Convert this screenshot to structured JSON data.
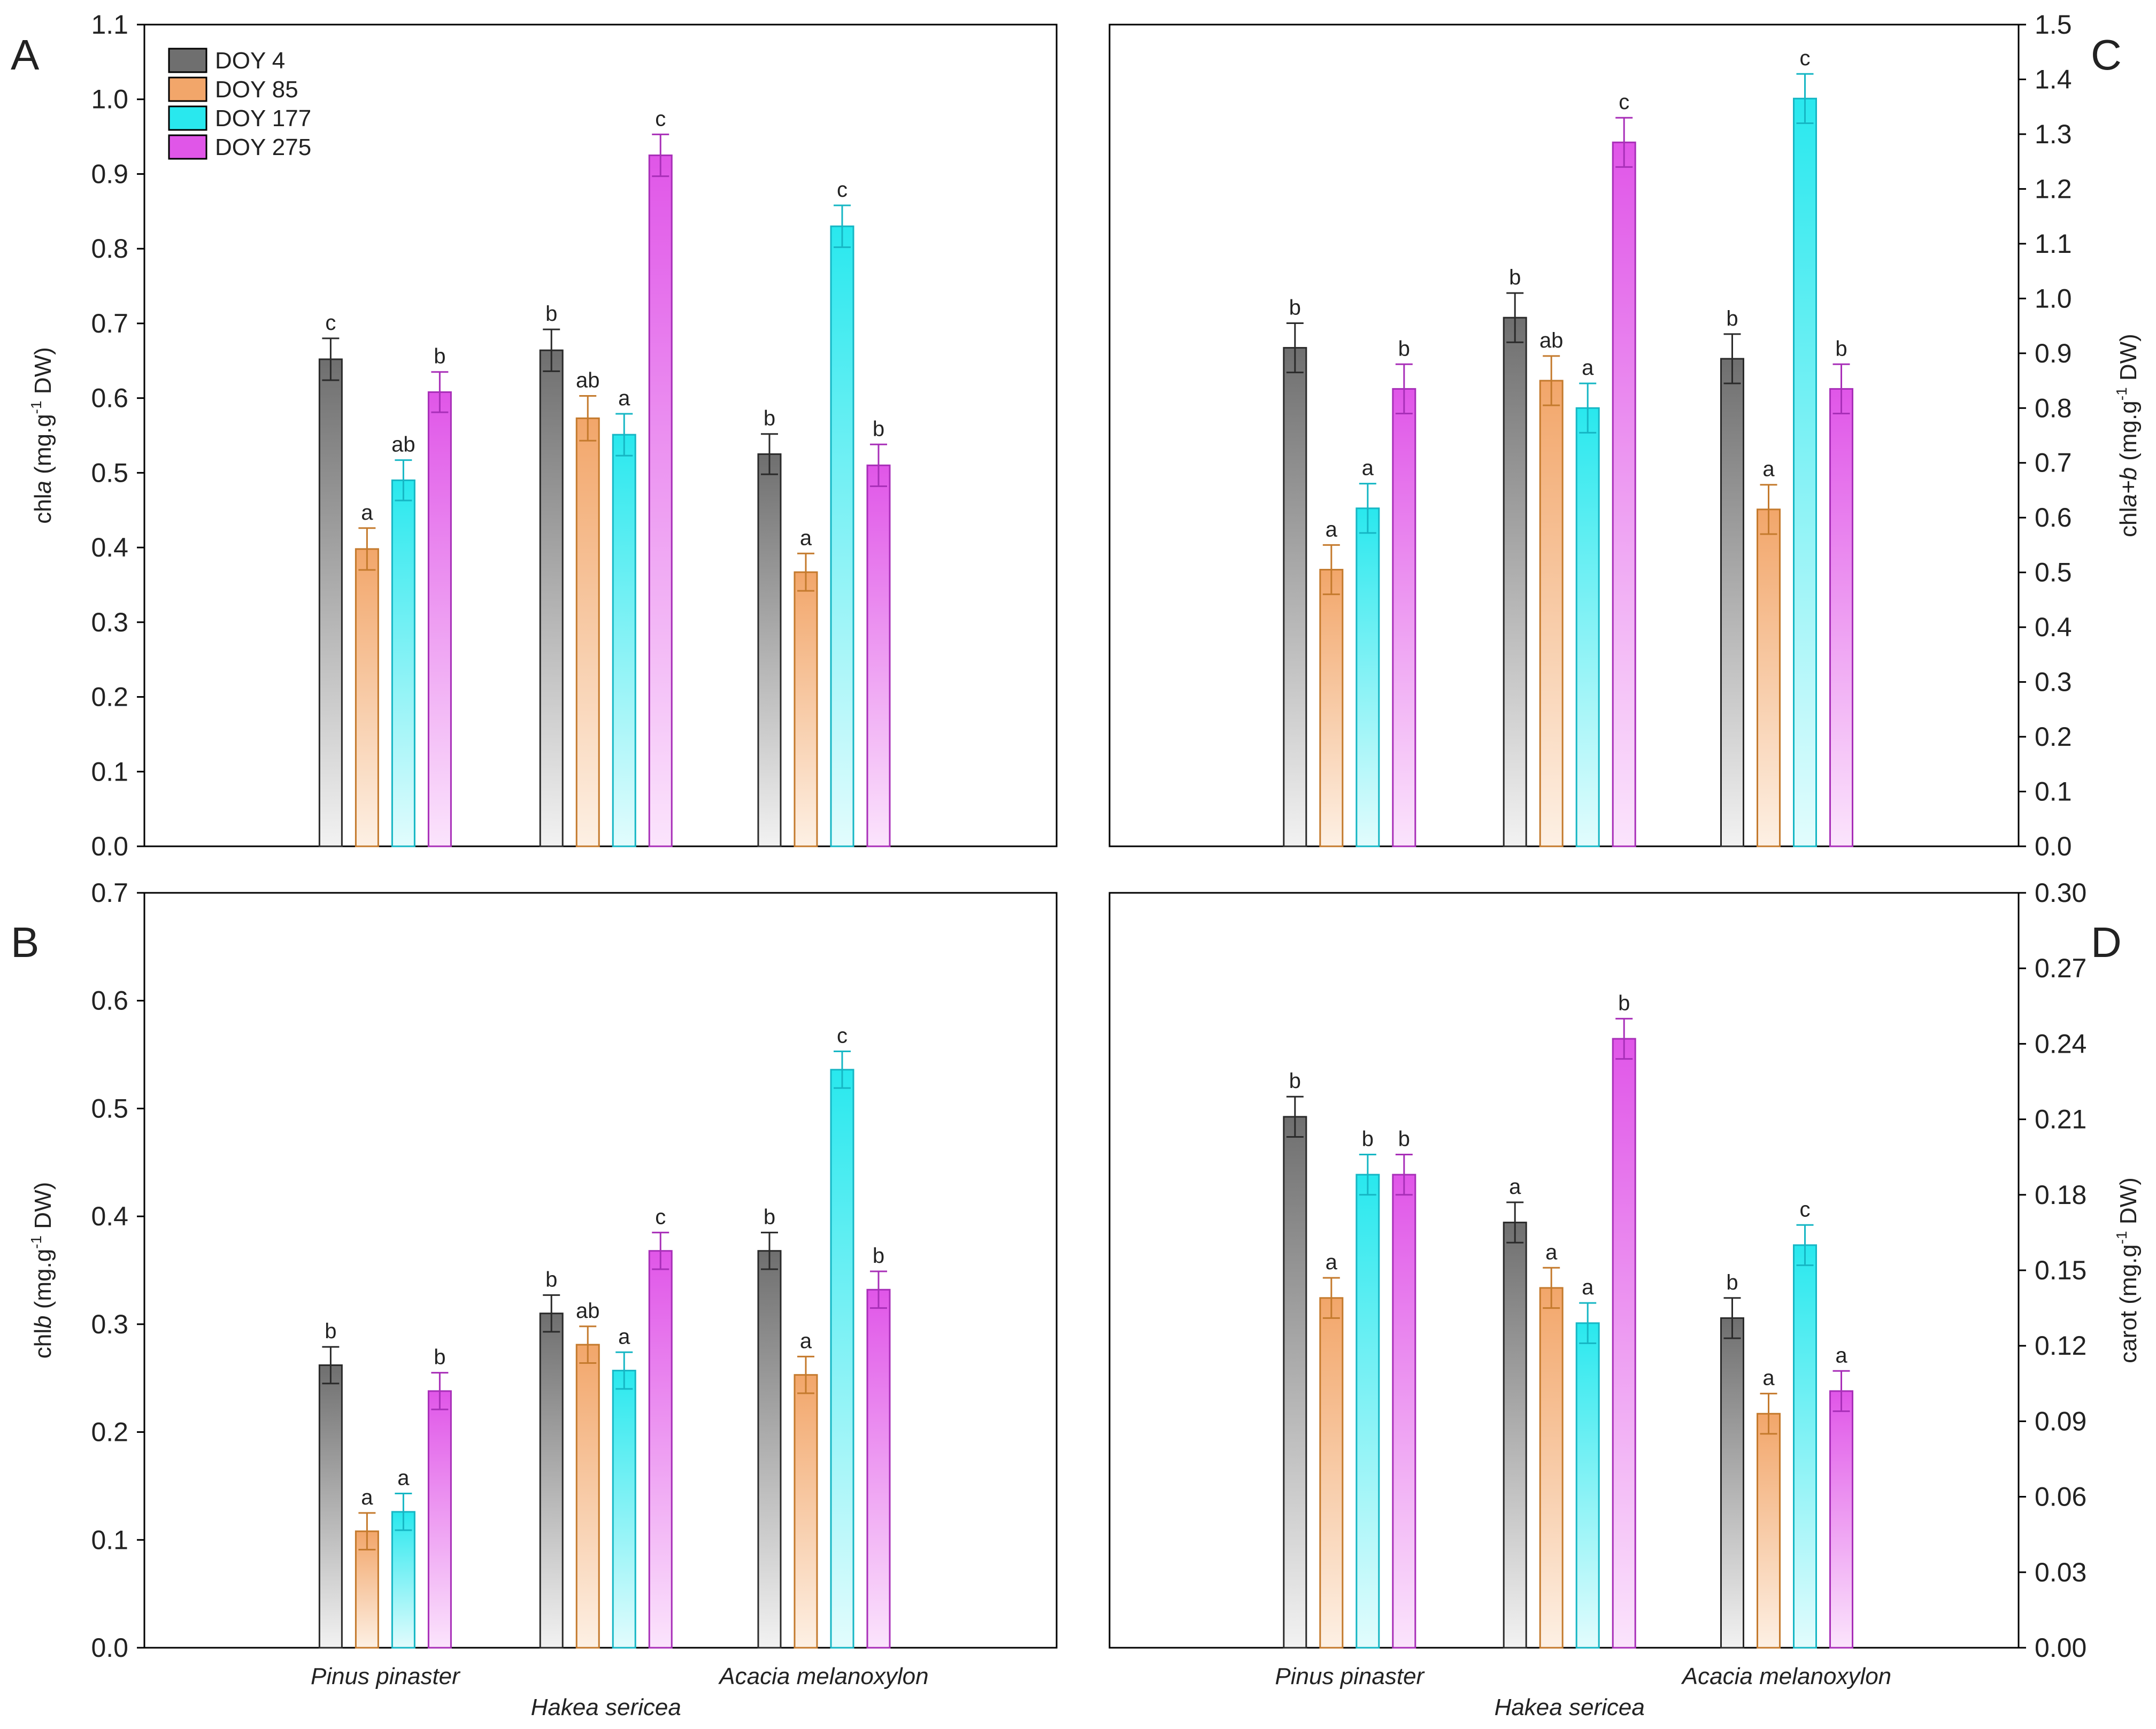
{
  "figure": {
    "species": [
      "Pinus pinaster",
      "Hakea sericea",
      "Acacia melanoxylon"
    ],
    "legend": [
      {
        "label": "DOY 4",
        "color": "#6f6f6f",
        "edge": "#2a2a2a",
        "light": "#f2f2f2"
      },
      {
        "label": "DOY 85",
        "color": "#f2a66a",
        "edge": "#c47a2d",
        "light": "#fdf0e4"
      },
      {
        "label": "DOY 177",
        "color": "#29e8ee",
        "edge": "#16b6c4",
        "light": "#e2fcfd"
      },
      {
        "label": "DOY 275",
        "color": "#e056e8",
        "edge": "#a82fb8",
        "light": "#fbe4fc"
      }
    ]
  },
  "chart_data": [
    {
      "panel": "A",
      "type": "bar",
      "ylabel": "chla (mg.g-1 DW)",
      "ylabel_parts": [
        "chl",
        "a",
        " (mg.g",
        "-1",
        " DW)"
      ],
      "ylim": [
        0.0,
        1.1
      ],
      "yticks": [
        "0.0",
        "0.1",
        "0.2",
        "0.3",
        "0.4",
        "0.5",
        "0.6",
        "0.7",
        "0.8",
        "0.9",
        "1.0",
        "1.1"
      ],
      "axis_side": "left",
      "legend": "top-left",
      "show_species_labels": false,
      "categories": [
        "Pinus pinaster",
        "Hakea sericea",
        "Acacia melanoxylon"
      ],
      "series": [
        {
          "name": "DOY 4",
          "values": [
            0.652,
            0.664,
            0.525
          ],
          "errors": [
            0.028,
            0.028,
            0.027
          ],
          "letters": [
            "c",
            "b",
            "b"
          ]
        },
        {
          "name": "DOY 85",
          "values": [
            0.398,
            0.573,
            0.367
          ],
          "errors": [
            0.028,
            0.03,
            0.025
          ],
          "letters": [
            "a",
            "ab",
            "a"
          ]
        },
        {
          "name": "DOY 177",
          "values": [
            0.49,
            0.551,
            0.83
          ],
          "errors": [
            0.027,
            0.028,
            0.028
          ],
          "letters": [
            "ab",
            "a",
            "c"
          ]
        },
        {
          "name": "DOY 275",
          "values": [
            0.608,
            0.925,
            0.51
          ],
          "errors": [
            0.027,
            0.028,
            0.028
          ],
          "letters": [
            "b",
            "c",
            "b"
          ]
        }
      ]
    },
    {
      "panel": "C",
      "type": "bar",
      "ylabel": "chla+b (mg.g-1 DW)",
      "ylabel_parts": [
        "chl",
        "a+b",
        " (mg.g",
        "-1",
        " DW)"
      ],
      "ylim": [
        0.0,
        1.5
      ],
      "yticks": [
        "0.0",
        "0.1",
        "0.2",
        "0.3",
        "0.4",
        "0.5",
        "0.6",
        "0.7",
        "0.8",
        "0.9",
        "1.0",
        "1.1",
        "1.2",
        "1.3",
        "1.4",
        "1.5"
      ],
      "axis_side": "right",
      "legend": "none",
      "show_species_labels": false,
      "categories": [
        "Pinus pinaster",
        "Hakea sericea",
        "Acacia melanoxylon"
      ],
      "series": [
        {
          "name": "DOY 4",
          "values": [
            0.91,
            0.965,
            0.89
          ],
          "errors": [
            0.045,
            0.045,
            0.045
          ],
          "letters": [
            "b",
            "b",
            "b"
          ]
        },
        {
          "name": "DOY 85",
          "values": [
            0.505,
            0.85,
            0.615
          ],
          "errors": [
            0.045,
            0.045,
            0.045
          ],
          "letters": [
            "a",
            "ab",
            "a"
          ]
        },
        {
          "name": "DOY 177",
          "values": [
            0.617,
            0.8,
            1.365
          ],
          "errors": [
            0.045,
            0.045,
            0.045
          ],
          "letters": [
            "a",
            "a",
            "c"
          ]
        },
        {
          "name": "DOY 275",
          "values": [
            0.835,
            1.285,
            0.835
          ],
          "errors": [
            0.045,
            0.045,
            0.045
          ],
          "letters": [
            "b",
            "c",
            "b"
          ]
        }
      ]
    },
    {
      "panel": "B",
      "type": "bar",
      "ylabel": "chlb (mg.g-1 DW)",
      "ylabel_parts": [
        "chl",
        "b",
        " (mg.g",
        "-1",
        " DW)"
      ],
      "ylim": [
        0.0,
        0.7
      ],
      "yticks": [
        "0.0",
        "0.1",
        "0.2",
        "0.3",
        "0.4",
        "0.5",
        "0.6",
        "0.7"
      ],
      "axis_side": "left",
      "legend": "none",
      "show_species_labels": true,
      "categories": [
        "Pinus pinaster",
        "Hakea sericea",
        "Acacia melanoxylon"
      ],
      "series": [
        {
          "name": "DOY 4",
          "values": [
            0.262,
            0.31,
            0.368
          ],
          "errors": [
            0.017,
            0.017,
            0.017
          ],
          "letters": [
            "b",
            "b",
            "b"
          ]
        },
        {
          "name": "DOY 85",
          "values": [
            0.108,
            0.281,
            0.253
          ],
          "errors": [
            0.017,
            0.017,
            0.017
          ],
          "letters": [
            "a",
            "ab",
            "a"
          ]
        },
        {
          "name": "DOY 177",
          "values": [
            0.126,
            0.257,
            0.536
          ],
          "errors": [
            0.017,
            0.017,
            0.017
          ],
          "letters": [
            "a",
            "a",
            "c"
          ]
        },
        {
          "name": "DOY 275",
          "values": [
            0.238,
            0.368,
            0.332
          ],
          "errors": [
            0.017,
            0.017,
            0.017
          ],
          "letters": [
            "b",
            "c",
            "b"
          ]
        }
      ]
    },
    {
      "panel": "D",
      "type": "bar",
      "ylabel": "carot (mg.g-1 DW)",
      "ylabel_parts": [
        "carot",
        "",
        " (mg.g",
        "-1",
        " DW)"
      ],
      "ylim": [
        0.0,
        0.3
      ],
      "yticks": [
        "0.00",
        "0.03",
        "0.06",
        "0.09",
        "0.12",
        "0.15",
        "0.18",
        "0.21",
        "0.24",
        "0.27",
        "0.30"
      ],
      "axis_side": "right",
      "legend": "none",
      "show_species_labels": true,
      "categories": [
        "Pinus pinaster",
        "Hakea sericea",
        "Acacia melanoxylon"
      ],
      "series": [
        {
          "name": "DOY 4",
          "values": [
            0.211,
            0.169,
            0.131
          ],
          "errors": [
            0.008,
            0.008,
            0.008
          ],
          "letters": [
            "b",
            "a",
            "b"
          ]
        },
        {
          "name": "DOY 85",
          "values": [
            0.139,
            0.143,
            0.093
          ],
          "errors": [
            0.008,
            0.008,
            0.008
          ],
          "letters": [
            "a",
            "a",
            "a"
          ]
        },
        {
          "name": "DOY 177",
          "values": [
            0.188,
            0.129,
            0.16
          ],
          "errors": [
            0.008,
            0.008,
            0.008
          ],
          "letters": [
            "b",
            "a",
            "c"
          ]
        },
        {
          "name": "DOY 275",
          "values": [
            0.188,
            0.242,
            0.102
          ],
          "errors": [
            0.008,
            0.008,
            0.008
          ],
          "letters": [
            "b",
            "b",
            "a"
          ]
        }
      ]
    }
  ]
}
